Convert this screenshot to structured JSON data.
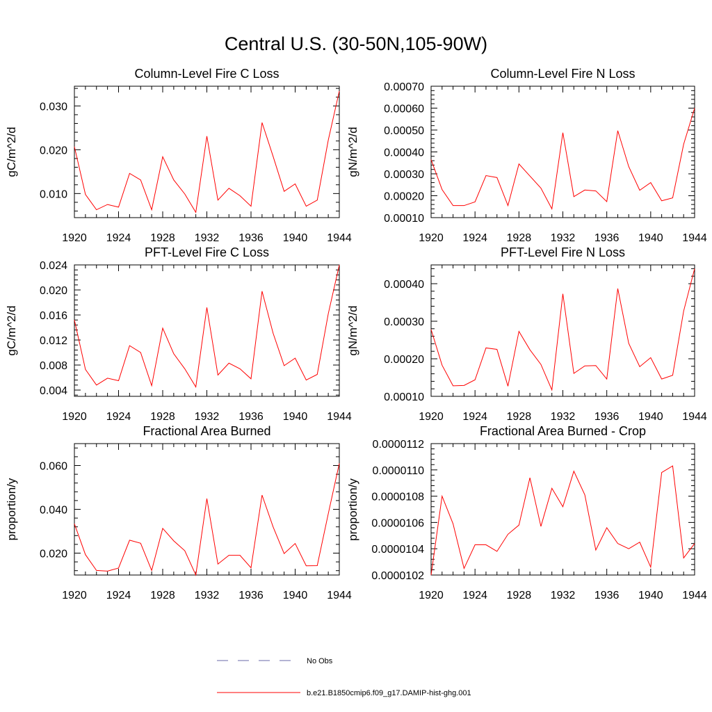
{
  "title": "Central U.S. (30-50N,105-90W)",
  "legend": [
    {
      "label": "No Obs",
      "color": "#6a6aa8",
      "style": "dashed"
    },
    {
      "label": "b.e21.B1850cmip6.f09_g17.DAMIP-hist-ghg.001",
      "color": "#ff0000",
      "style": "solid"
    }
  ],
  "chart_data": [
    {
      "type": "line",
      "title": "Column-Level Fire C Loss",
      "ylabel": "gC/m^2/d",
      "xlim": [
        1920,
        1944
      ],
      "ylim": [
        0.0045,
        0.0345
      ],
      "xticks": [
        "1920",
        "1924",
        "1928",
        "1932",
        "1936",
        "1940",
        "1944"
      ],
      "yticks": [
        "0.010",
        "0.020",
        "0.030"
      ],
      "x": [
        1920,
        1921,
        1922,
        1923,
        1924,
        1925,
        1926,
        1927,
        1928,
        1929,
        1930,
        1931,
        1932,
        1933,
        1934,
        1935,
        1936,
        1937,
        1938,
        1939,
        1940,
        1941,
        1942,
        1943,
        1944
      ],
      "series": [
        {
          "values": [
            0.0207,
            0.0098,
            0.0063,
            0.0075,
            0.0069,
            0.0146,
            0.0131,
            0.0063,
            0.0184,
            0.0131,
            0.0099,
            0.0057,
            0.0231,
            0.0085,
            0.0112,
            0.0095,
            0.0071,
            0.0262,
            0.0185,
            0.0105,
            0.0122,
            0.0071,
            0.0085,
            0.0222,
            0.0334
          ]
        }
      ]
    },
    {
      "type": "line",
      "title": "Column-Level Fire N Loss",
      "ylabel": "gN/m^2/d",
      "xlim": [
        1920,
        1944
      ],
      "ylim": [
        0.0001,
        0.0007
      ],
      "xticks": [
        "1920",
        "1924",
        "1928",
        "1932",
        "1936",
        "1940",
        "1944"
      ],
      "yticks": [
        "0.00010",
        "0.00020",
        "0.00030",
        "0.00040",
        "0.00050",
        "0.00060",
        "0.00070"
      ],
      "x": [
        1920,
        1921,
        1922,
        1923,
        1924,
        1925,
        1926,
        1927,
        1928,
        1929,
        1930,
        1931,
        1932,
        1933,
        1934,
        1935,
        1936,
        1937,
        1938,
        1939,
        1940,
        1941,
        1942,
        1943,
        1944
      ],
      "series": [
        {
          "values": [
            0.000365,
            0.000228,
            0.000155,
            0.000155,
            0.000172,
            0.000292,
            0.000283,
            0.000155,
            0.000345,
            0.00029,
            0.000235,
            0.00014,
            0.000488,
            0.000196,
            0.000226,
            0.000222,
            0.000173,
            0.000497,
            0.000333,
            0.000225,
            0.00026,
            0.000177,
            0.00019,
            0.000435,
            0.0006
          ]
        }
      ]
    },
    {
      "type": "line",
      "title": "PFT-Level Fire C Loss",
      "ylabel": "gC/m^2/d",
      "xlim": [
        1920,
        1944
      ],
      "ylim": [
        0.003,
        0.024
      ],
      "xticks": [
        "1920",
        "1924",
        "1928",
        "1932",
        "1936",
        "1940",
        "1944"
      ],
      "yticks": [
        "0.004",
        "0.008",
        "0.012",
        "0.016",
        "0.020",
        "0.024"
      ],
      "x": [
        1920,
        1921,
        1922,
        1923,
        1924,
        1925,
        1926,
        1927,
        1928,
        1929,
        1930,
        1931,
        1932,
        1933,
        1934,
        1935,
        1936,
        1937,
        1938,
        1939,
        1940,
        1941,
        1942,
        1943,
        1944
      ],
      "series": [
        {
          "values": [
            0.0152,
            0.0073,
            0.0048,
            0.0059,
            0.0055,
            0.0111,
            0.01,
            0.0047,
            0.0139,
            0.0098,
            0.0074,
            0.0045,
            0.0172,
            0.0064,
            0.0083,
            0.0074,
            0.0058,
            0.0198,
            0.0131,
            0.0079,
            0.0091,
            0.0056,
            0.0065,
            0.0162,
            0.024
          ]
        }
      ]
    },
    {
      "type": "line",
      "title": "PFT-Level Fire N Loss",
      "ylabel": "gN/m^2/d",
      "xlim": [
        1920,
        1944
      ],
      "ylim": [
        0.0001,
        0.00045
      ],
      "xticks": [
        "1920",
        "1924",
        "1928",
        "1932",
        "1936",
        "1940",
        "1944"
      ],
      "yticks": [
        "0.00010",
        "0.00020",
        "0.00030",
        "0.00040"
      ],
      "x": [
        1920,
        1921,
        1922,
        1923,
        1924,
        1925,
        1926,
        1927,
        1928,
        1929,
        1930,
        1931,
        1932,
        1933,
        1934,
        1935,
        1936,
        1937,
        1938,
        1939,
        1940,
        1941,
        1942,
        1943,
        1944
      ],
      "series": [
        {
          "values": [
            0.000278,
            0.000183,
            0.000128,
            0.000129,
            0.000144,
            0.000229,
            0.000225,
            0.000127,
            0.000273,
            0.000224,
            0.000185,
            0.000117,
            0.000373,
            0.000161,
            0.000181,
            0.000182,
            0.000146,
            0.000387,
            0.000241,
            0.000179,
            0.000203,
            0.000146,
            0.000156,
            0.000327,
            0.00044
          ]
        }
      ]
    },
    {
      "type": "line",
      "title": "Fractional Area Burned",
      "ylabel": "proportion/y",
      "xlim": [
        1920,
        1944
      ],
      "ylim": [
        0.01,
        0.07
      ],
      "xticks": [
        "1920",
        "1924",
        "1928",
        "1932",
        "1936",
        "1940",
        "1944"
      ],
      "yticks": [
        "0.020",
        "0.040",
        "0.060"
      ],
      "x": [
        1920,
        1921,
        1922,
        1923,
        1924,
        1925,
        1926,
        1927,
        1928,
        1929,
        1930,
        1931,
        1932,
        1933,
        1934,
        1935,
        1936,
        1937,
        1938,
        1939,
        1940,
        1941,
        1942,
        1943,
        1944
      ],
      "series": [
        {
          "values": [
            0.0334,
            0.0193,
            0.0121,
            0.0118,
            0.0132,
            0.0259,
            0.0245,
            0.0121,
            0.0313,
            0.0256,
            0.0211,
            0.01,
            0.0449,
            0.015,
            0.019,
            0.019,
            0.0133,
            0.0465,
            0.032,
            0.0198,
            0.0244,
            0.0142,
            0.0143,
            0.038,
            0.061
          ]
        }
      ]
    },
    {
      "type": "line",
      "title": "Fractional Area Burned - Crop",
      "ylabel": "proportion/y",
      "xlim": [
        1920,
        1944
      ],
      "ylim": [
        1.02e-05,
        1.12e-05
      ],
      "xticks": [
        "1920",
        "1924",
        "1928",
        "1932",
        "1936",
        "1940",
        "1944"
      ],
      "yticks": [
        "0.0000102",
        "0.0000104",
        "0.0000106",
        "0.0000108",
        "0.0000110",
        "0.0000112"
      ],
      "x": [
        1920,
        1921,
        1922,
        1923,
        1924,
        1925,
        1926,
        1927,
        1928,
        1929,
        1930,
        1931,
        1932,
        1933,
        1934,
        1935,
        1936,
        1937,
        1938,
        1939,
        1940,
        1941,
        1942,
        1943,
        1944
      ],
      "series": [
        {
          "values": [
            1.02e-05,
            1.08e-05,
            1.059e-05,
            1.025e-05,
            1.043e-05,
            1.043e-05,
            1.038e-05,
            1.051e-05,
            1.058e-05,
            1.094e-05,
            1.057e-05,
            1.086e-05,
            1.072e-05,
            1.099e-05,
            1.081e-05,
            1.039e-05,
            1.056e-05,
            1.044e-05,
            1.04e-05,
            1.045e-05,
            1.026e-05,
            1.098e-05,
            1.103e-05,
            1.033e-05,
            1.044e-05
          ]
        }
      ]
    }
  ]
}
